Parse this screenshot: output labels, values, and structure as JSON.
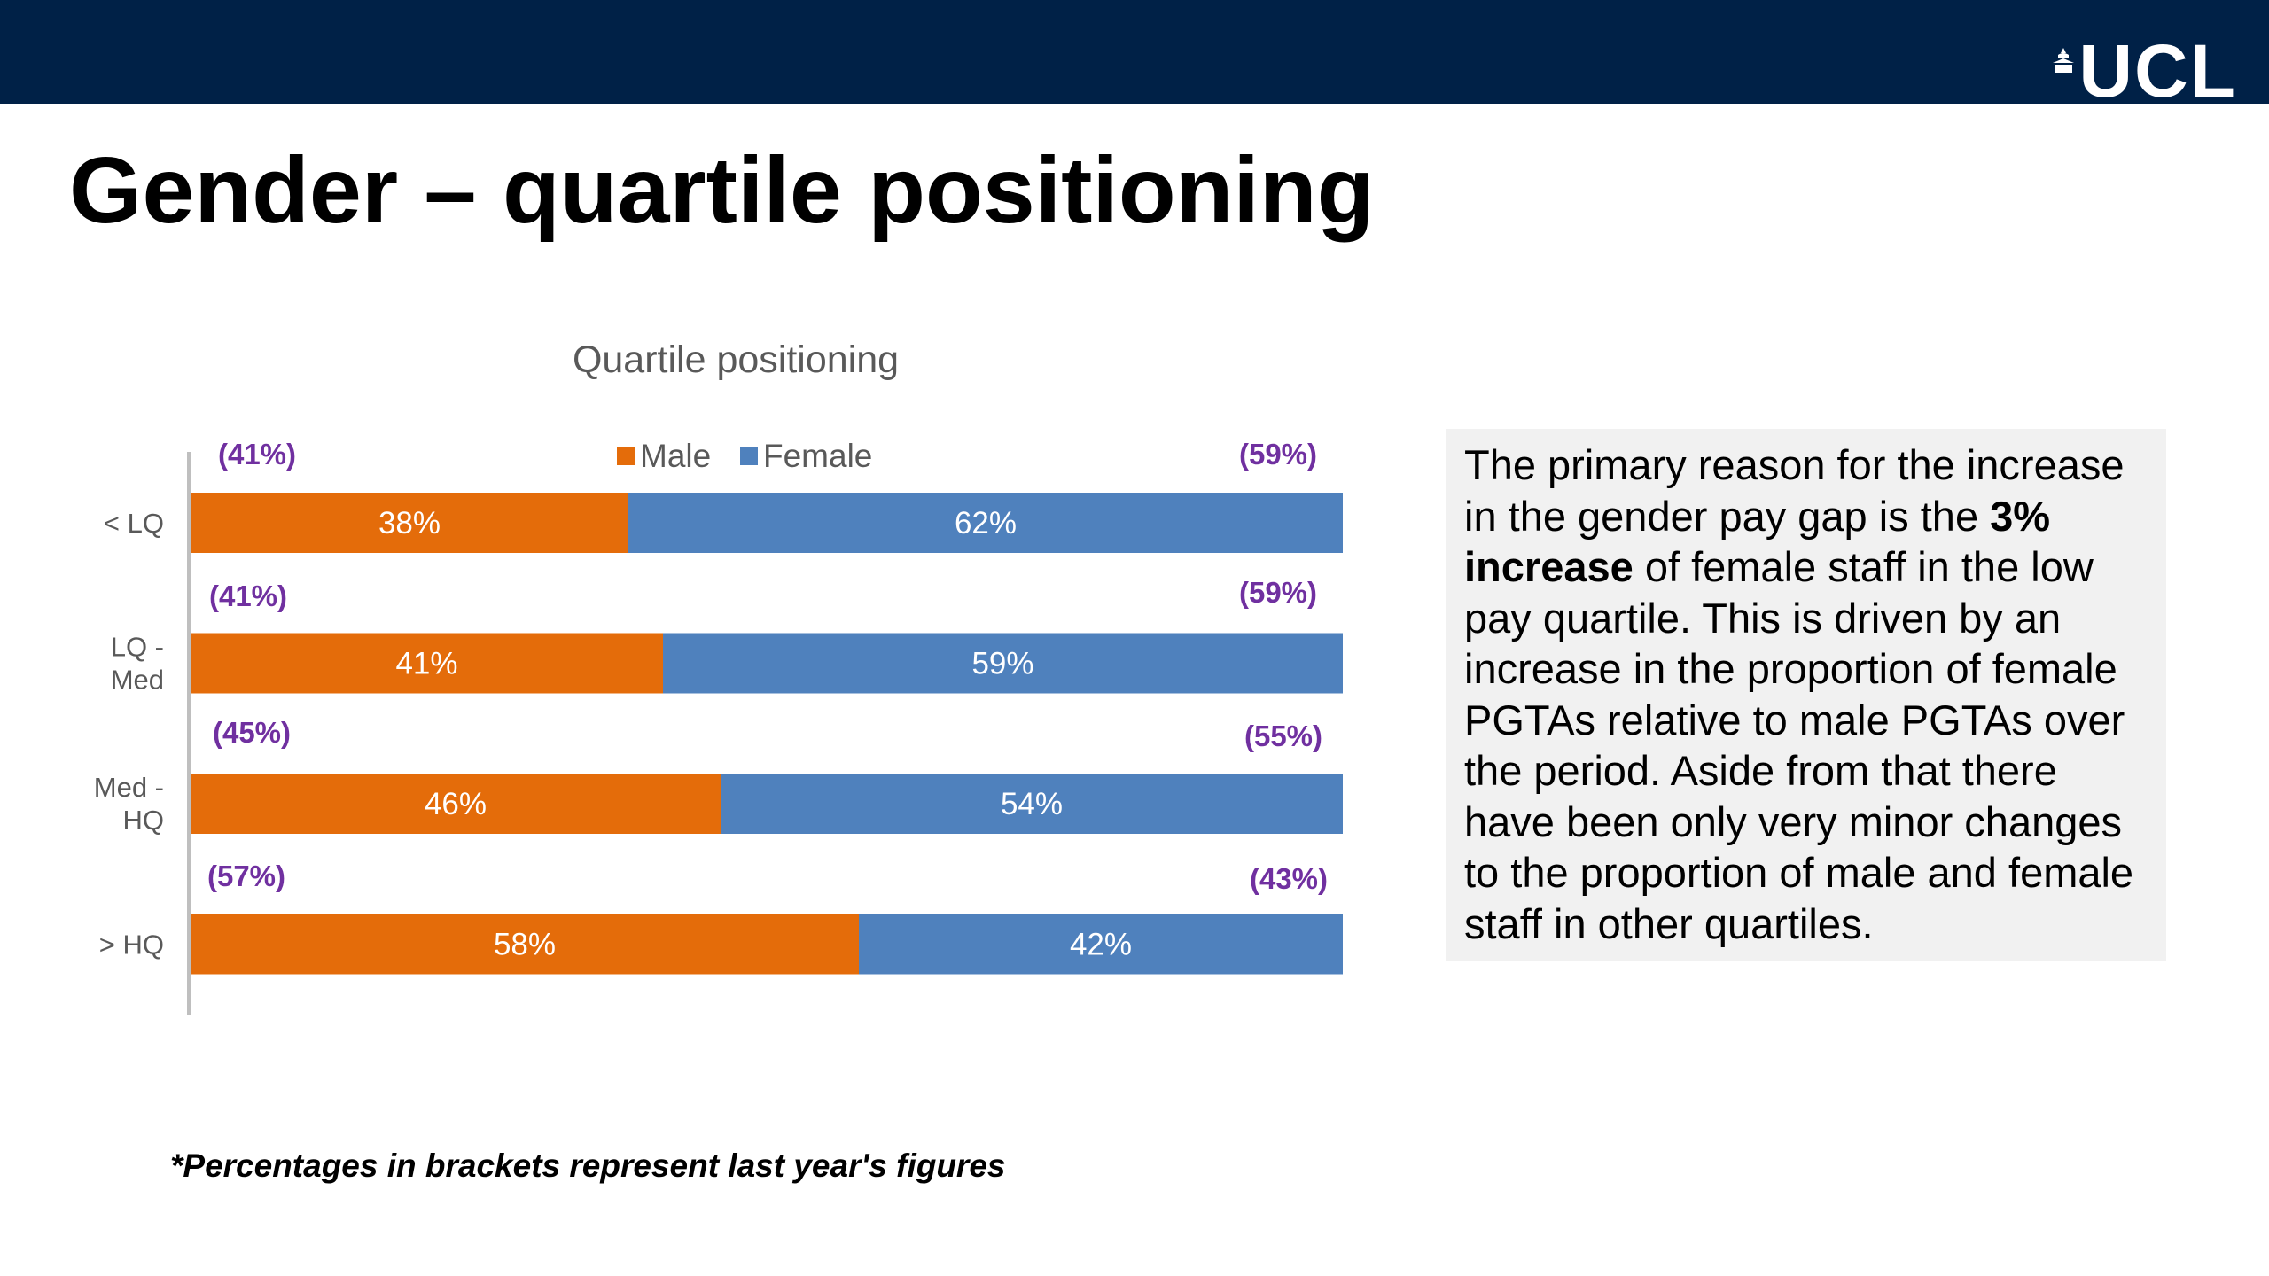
{
  "slide": {
    "title": "Gender – quartile positioning",
    "logo": "UCL",
    "footnote": "*Percentages in brackets represent last year's figures",
    "colors": {
      "header": "#002147",
      "male": "#E46C0A",
      "female": "#4F81BD",
      "prev_label": "#7030A0"
    }
  },
  "chart_data": {
    "type": "bar",
    "orientation": "horizontal",
    "stacked": "100%",
    "title": "Quartile positioning",
    "categories": [
      "< LQ",
      "LQ - Med",
      "Med - HQ",
      "> HQ"
    ],
    "series": [
      {
        "name": "Male",
        "values": [
          38,
          41,
          46,
          58
        ],
        "labels": [
          "38%",
          "41%",
          "46%",
          "58%"
        ],
        "previous_labels": [
          "(41%)",
          "(41%)",
          "(45%)",
          "(57%)"
        ]
      },
      {
        "name": "Female",
        "values": [
          62,
          59,
          54,
          42
        ],
        "labels": [
          "62%",
          "59%",
          "54%",
          "42%"
        ],
        "previous_labels": [
          "(59%)",
          "(59%)",
          "(55%)",
          "(43%)"
        ]
      }
    ],
    "xlim": [
      0,
      100
    ],
    "legend": "top",
    "grid": false
  },
  "side_box": {
    "text_before": "The primary reason for the increase in the gender pay gap is the ",
    "text_bold": "3% increase",
    "text_after": " of female staff in the low pay quartile. This is driven by an increase in the proportion of female PGTAs relative to male PGTAs over the period. Aside from that there have been only very minor changes to the proportion of male and female staff in other quartiles."
  }
}
